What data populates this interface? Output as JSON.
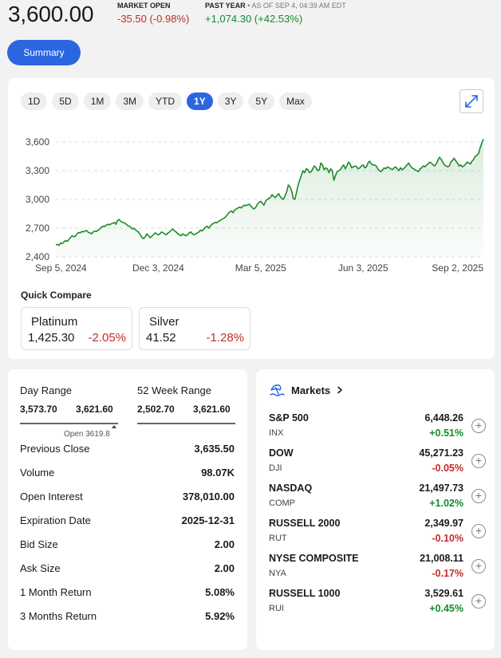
{
  "header": {
    "price": "3,600.00",
    "market_status": "MARKET OPEN",
    "day_change": "-35.50 (-0.98%)",
    "past_year_label": "PAST YEAR",
    "as_of": " • AS OF SEP 4, 04:39 AM EDT",
    "past_year_change": "+1,074.30 (+42.53%)"
  },
  "summary_button": "Summary",
  "ranges": [
    "1D",
    "5D",
    "1M",
    "3M",
    "YTD",
    "1Y",
    "3Y",
    "5Y",
    "Max"
  ],
  "active_range": "1Y",
  "colors": {
    "accent": "#2b66e0",
    "up": "#138a2e",
    "down": "#c42b2b",
    "line": "#1f8a2a"
  },
  "chart_data": {
    "type": "area",
    "title": "",
    "xlabel": "",
    "ylabel": "",
    "ylim": [
      2400,
      3650
    ],
    "y_ticks": [
      "3,600",
      "3,300",
      "3,000",
      "2,700",
      "2,400"
    ],
    "y_tick_values": [
      3600,
      3300,
      3000,
      2700,
      2400
    ],
    "x_ticks": [
      "Sep 5, 2024",
      "Dec 3, 2024",
      "Mar 5, 2025",
      "Jun 3, 2025",
      "Sep 2, 2025"
    ],
    "x_tick_index": [
      0,
      63,
      126,
      189,
      251
    ],
    "grid": true,
    "series": [
      {
        "values": [
          2525,
          2530,
          2520,
          2545,
          2540,
          2555,
          2570,
          2560,
          2580,
          2600,
          2620,
          2610,
          2615,
          2640,
          2655,
          2650,
          2665,
          2660,
          2670,
          2675,
          2655,
          2650,
          2640,
          2660,
          2670,
          2665,
          2680,
          2690,
          2710,
          2720,
          2715,
          2730,
          2740,
          2735,
          2745,
          2750,
          2760,
          2740,
          2780,
          2790,
          2770,
          2760,
          2755,
          2745,
          2730,
          2720,
          2710,
          2690,
          2700,
          2680,
          2670,
          2655,
          2630,
          2600,
          2590,
          2610,
          2640,
          2620,
          2600,
          2615,
          2630,
          2650,
          2640,
          2630,
          2640,
          2660,
          2650,
          2640,
          2630,
          2650,
          2660,
          2680,
          2690,
          2670,
          2660,
          2640,
          2630,
          2620,
          2640,
          2630,
          2620,
          2630,
          2650,
          2660,
          2640,
          2630,
          2640,
          2650,
          2660,
          2680,
          2670,
          2690,
          2710,
          2720,
          2700,
          2720,
          2740,
          2750,
          2760,
          2755,
          2770,
          2780,
          2790,
          2800,
          2810,
          2830,
          2850,
          2870,
          2880,
          2860,
          2890,
          2900,
          2910,
          2920,
          2910,
          2930,
          2940,
          2935,
          2945,
          2950,
          2930,
          2910,
          2900,
          2920,
          2950,
          2970,
          2980,
          2960,
          2940,
          2980,
          3000,
          3010,
          3020,
          3050,
          3030,
          3020,
          3040,
          3060,
          3030,
          3010,
          3000,
          3040,
          3080,
          3150,
          3130,
          3090,
          3010,
          3000,
          3070,
          3150,
          3200,
          3250,
          3300,
          3280,
          3320,
          3310,
          3280,
          3290,
          3320,
          3350,
          3330,
          3300,
          3310,
          3380,
          3360,
          3310,
          3330,
          3320,
          3280,
          3320,
          3300,
          3200,
          3250,
          3290,
          3300,
          3310,
          3340,
          3360,
          3320,
          3350,
          3390,
          3370,
          3330,
          3340,
          3350,
          3340,
          3320,
          3330,
          3350,
          3360,
          3330,
          3340,
          3380,
          3400,
          3370,
          3360,
          3360,
          3350,
          3320,
          3300,
          3290,
          3310,
          3330,
          3320,
          3340,
          3330,
          3320,
          3310,
          3330,
          3340,
          3320,
          3300,
          3330,
          3310,
          3320,
          3340,
          3360,
          3380,
          3350,
          3330,
          3320,
          3310,
          3300,
          3290,
          3320,
          3330,
          3350,
          3340,
          3360,
          3370,
          3390,
          3380,
          3360,
          3350,
          3370,
          3410,
          3440,
          3420,
          3390,
          3360,
          3350,
          3340,
          3350,
          3390,
          3410,
          3430,
          3400,
          3380,
          3350,
          3360,
          3340,
          3350,
          3370,
          3390,
          3380,
          3370,
          3400,
          3420,
          3450,
          3460,
          3480,
          3540,
          3590,
          3630
        ]
      }
    ]
  },
  "quick_compare": {
    "title": "Quick Compare",
    "items": [
      {
        "name": "Platinum",
        "price": "1,425.30",
        "change": "-2.05%"
      },
      {
        "name": "Silver",
        "price": "41.52",
        "change": "-1.28%"
      }
    ]
  },
  "stats": {
    "day_range_label": "Day Range",
    "day_low": "3,573.70",
    "day_high": "3,621.60",
    "open_note": "Open 3619.8",
    "day_open_fraction": 0.96,
    "week52_label": "52 Week Range",
    "week52_low": "2,502.70",
    "week52_high": "3,621.60",
    "rows": [
      {
        "label": "Previous Close",
        "value": "3,635.50"
      },
      {
        "label": "Volume",
        "value": "98.07K"
      },
      {
        "label": "Open Interest",
        "value": "378,010.00"
      },
      {
        "label": "Expiration Date",
        "value": "2025-12-31"
      },
      {
        "label": "Bid Size",
        "value": "2.00"
      },
      {
        "label": "Ask Size",
        "value": "2.00"
      },
      {
        "label": "1 Month Return",
        "value": "5.08%"
      },
      {
        "label": "3 Months Return",
        "value": "5.92%"
      }
    ]
  },
  "markets": {
    "title": "Markets",
    "icon": "beach-umbrella-icon",
    "items": [
      {
        "name": "S&P 500",
        "symbol": "INX",
        "value": "6,448.26",
        "change": "+0.51%",
        "dir": "up"
      },
      {
        "name": "DOW",
        "symbol": "DJI",
        "value": "45,271.23",
        "change": "-0.05%",
        "dir": "down"
      },
      {
        "name": "NASDAQ",
        "symbol": "COMP",
        "value": "21,497.73",
        "change": "+1.02%",
        "dir": "up"
      },
      {
        "name": "RUSSELL 2000",
        "symbol": "RUT",
        "value": "2,349.97",
        "change": "-0.10%",
        "dir": "down"
      },
      {
        "name": "NYSE COMPOSITE",
        "symbol": "NYA",
        "value": "21,008.11",
        "change": "-0.17%",
        "dir": "down"
      },
      {
        "name": "RUSSELL 1000",
        "symbol": "RUI",
        "value": "3,529.61",
        "change": "+0.45%",
        "dir": "up"
      }
    ]
  }
}
